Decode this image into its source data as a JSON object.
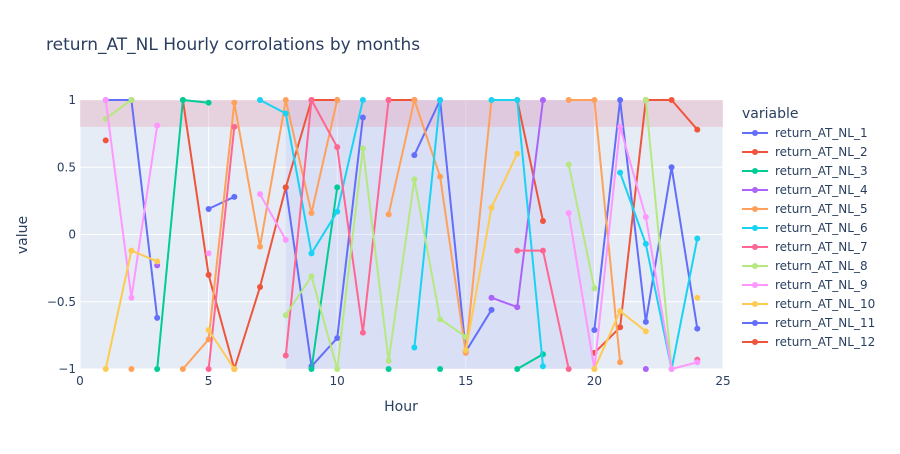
{
  "chart_data": {
    "type": "line",
    "title": "return_AT_NL Hourly corrolations by months",
    "xlabel": "Hour",
    "ylabel": "value",
    "xlim": [
      0,
      25
    ],
    "ylim": [
      -1,
      1
    ],
    "x_ticks": [
      0,
      5,
      10,
      15,
      20,
      25
    ],
    "y_ticks": [
      -1,
      -0.5,
      0,
      0.5,
      1
    ],
    "y_tick_labels": [
      "−1",
      "−0.5",
      "0",
      "0.5",
      "1"
    ],
    "highlight_band": {
      "y_from": 0.8,
      "y_to": 1.0,
      "color": "#e8a0b4"
    },
    "highlight_regions": [
      {
        "x_from": 8,
        "x_to": 15,
        "color": "#b3b3f0"
      },
      {
        "x_from": 15,
        "x_to": 20,
        "color": "#b3b3f0"
      }
    ],
    "legend_title": "variable",
    "legend_position": "right",
    "x": [
      1,
      2,
      3,
      4,
      5,
      6,
      7,
      8,
      9,
      10,
      11,
      12,
      13,
      14,
      15,
      16,
      17,
      18,
      19,
      20,
      21,
      22,
      23,
      24
    ],
    "series": [
      {
        "name": "return_AT_NL_1",
        "color": "#636efa",
        "values": [
          1.0,
          1.0,
          -0.62,
          null,
          0.19,
          0.28,
          null,
          0.35,
          -0.98,
          -0.77,
          0.87,
          null,
          0.59,
          1.0,
          -0.87,
          -0.56,
          null,
          null,
          null,
          -0.71,
          1.0,
          -0.65,
          0.5,
          -0.7
        ]
      },
      {
        "name": "return_AT_NL_2",
        "color": "#ef553b",
        "values": [
          0.7,
          null,
          null,
          1.0,
          -0.3,
          -1.0,
          -0.39,
          0.35,
          1.0,
          1.0,
          null,
          1.0,
          1.0,
          null,
          null,
          null,
          1.0,
          0.1,
          null,
          -0.88,
          -0.69,
          1.0,
          1.0,
          0.78
        ]
      },
      {
        "name": "return_AT_NL_3",
        "color": "#00cc96",
        "values": [
          null,
          null,
          -1.0,
          1.0,
          0.98,
          null,
          null,
          null,
          -1.0,
          0.35,
          null,
          -1.0,
          null,
          -1.0,
          null,
          null,
          -1.0,
          -0.89,
          null,
          null,
          null,
          null,
          null,
          null
        ]
      },
      {
        "name": "return_AT_NL_4",
        "color": "#ab63fa",
        "values": [
          null,
          null,
          -0.23,
          null,
          null,
          null,
          null,
          null,
          null,
          null,
          null,
          null,
          null,
          null,
          null,
          -0.47,
          -0.54,
          1.0,
          null,
          null,
          null,
          -1.0,
          null,
          null
        ]
      },
      {
        "name": "return_AT_NL_5",
        "color": "#ffa15a",
        "values": [
          null,
          -1.0,
          null,
          -1.0,
          -0.78,
          0.98,
          -0.09,
          1.0,
          0.16,
          1.0,
          null,
          0.15,
          1.0,
          0.43,
          -0.88,
          1.0,
          1.0,
          null,
          1.0,
          1.0,
          -0.95,
          null,
          null,
          null
        ]
      },
      {
        "name": "return_AT_NL_6",
        "color": "#19d3f3",
        "values": [
          null,
          null,
          null,
          null,
          null,
          null,
          1.0,
          0.9,
          -0.14,
          0.17,
          1.0,
          null,
          -0.84,
          1.0,
          null,
          1.0,
          1.0,
          -0.98,
          null,
          null,
          0.46,
          -0.07,
          -1.0,
          -0.03
        ]
      },
      {
        "name": "return_AT_NL_7",
        "color": "#ff6692",
        "values": [
          null,
          null,
          null,
          null,
          -1.0,
          0.8,
          null,
          -0.9,
          1.0,
          0.65,
          -0.73,
          1.0,
          null,
          null,
          null,
          null,
          -0.12,
          -0.12,
          -1.0,
          null,
          null,
          null,
          null,
          -0.93
        ]
      },
      {
        "name": "return_AT_NL_8",
        "color": "#b6e880",
        "values": [
          0.86,
          1.0,
          null,
          null,
          null,
          null,
          null,
          -0.6,
          -0.31,
          -1.0,
          0.64,
          -0.94,
          0.41,
          -0.63,
          -0.76,
          null,
          null,
          null,
          0.52,
          -0.4,
          null,
          1.0,
          -1.0,
          null
        ]
      },
      {
        "name": "return_AT_NL_9",
        "color": "#ff97ff",
        "values": [
          1.0,
          -0.47,
          0.81,
          null,
          -0.14,
          null,
          0.3,
          -0.04,
          null,
          null,
          null,
          null,
          null,
          null,
          null,
          null,
          null,
          null,
          0.16,
          -1.0,
          0.8,
          0.13,
          -1.0,
          -0.95
        ]
      },
      {
        "name": "return_AT_NL_10",
        "color": "#fecb52",
        "values": [
          -1.0,
          -0.12,
          -0.2,
          null,
          -0.71,
          -1.0,
          null,
          null,
          null,
          null,
          null,
          null,
          null,
          null,
          -0.86,
          0.2,
          0.6,
          null,
          null,
          -1.0,
          -0.57,
          -0.72,
          null,
          -0.47
        ]
      }
    ],
    "legend_extra": [
      {
        "name": "return_AT_NL_11",
        "color": "#636efa"
      },
      {
        "name": "return_AT_NL_12",
        "color": "#ef553b"
      }
    ]
  }
}
